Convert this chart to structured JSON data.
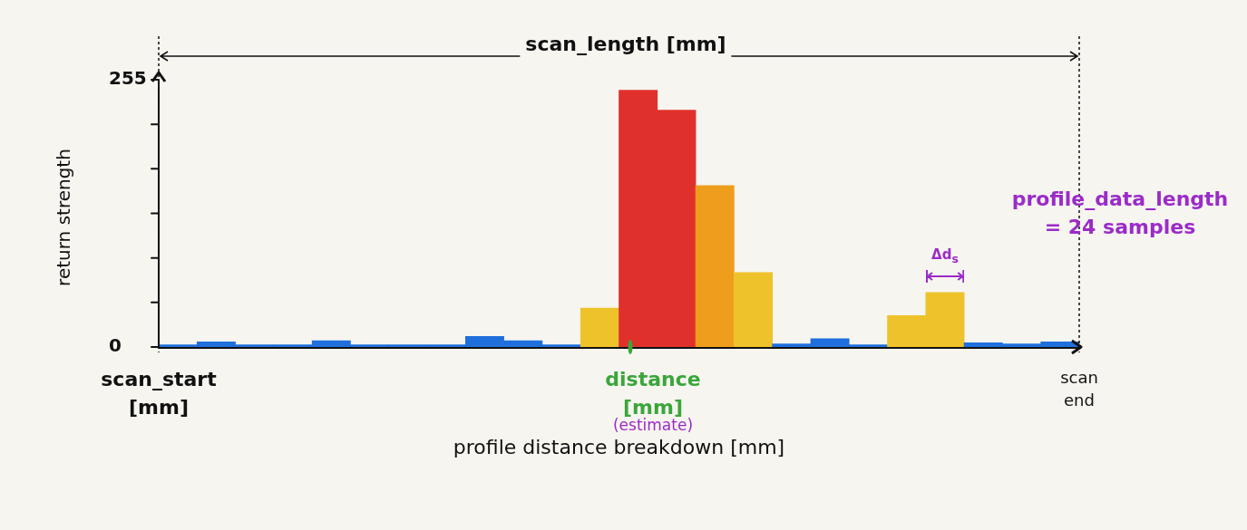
{
  "chart_data": {
    "type": "bar",
    "xlabel": "profile distance breakdown [mm]",
    "ylabel": "return strength",
    "categories": [
      null,
      null,
      null,
      null,
      null,
      null,
      null,
      null,
      null,
      null,
      null,
      null,
      null,
      null,
      null,
      null,
      null,
      null,
      null,
      null,
      null,
      null,
      null,
      null
    ],
    "values": [
      2,
      5,
      2,
      2,
      6,
      2,
      2,
      2,
      10,
      6,
      2,
      37,
      245,
      226,
      154,
      71,
      3,
      8,
      2,
      30,
      52,
      4,
      3,
      5
    ],
    "colors": [
      "#1f6fdc",
      "#1f6fdc",
      "#1f6fdc",
      "#1f6fdc",
      "#1f6fdc",
      "#1f6fdc",
      "#1f6fdc",
      "#1f6fdc",
      "#1f6fdc",
      "#1f6fdc",
      "#1f6fdc",
      "#eec22a",
      "#e0302c",
      "#e0302c",
      "#ee9e1c",
      "#eec22a",
      "#1f6fdc",
      "#1f6fdc",
      "#1f6fdc",
      "#eec22a",
      "#eec22a",
      "#1f6fdc",
      "#1f6fdc",
      "#1f6fdc"
    ],
    "ylim": [
      0,
      255
    ],
    "yticks": [
      0,
      {
        "value": 42.5,
        "label": null
      },
      {
        "value": 85,
        "label": null
      },
      {
        "value": 127.5,
        "label": null
      },
      {
        "value": 170,
        "label": null
      },
      {
        "value": 212.5,
        "label": null
      },
      255
    ],
    "annotations": [
      "scan_length [mm]",
      "scan_start\n[mm]",
      "distance\n[mm]",
      "(estimate)",
      "scan\nend",
      "profile_data_length\n= 24 samples",
      "Δd$_{s}$"
    ],
    "legend": false,
    "grid": false
  }
}
